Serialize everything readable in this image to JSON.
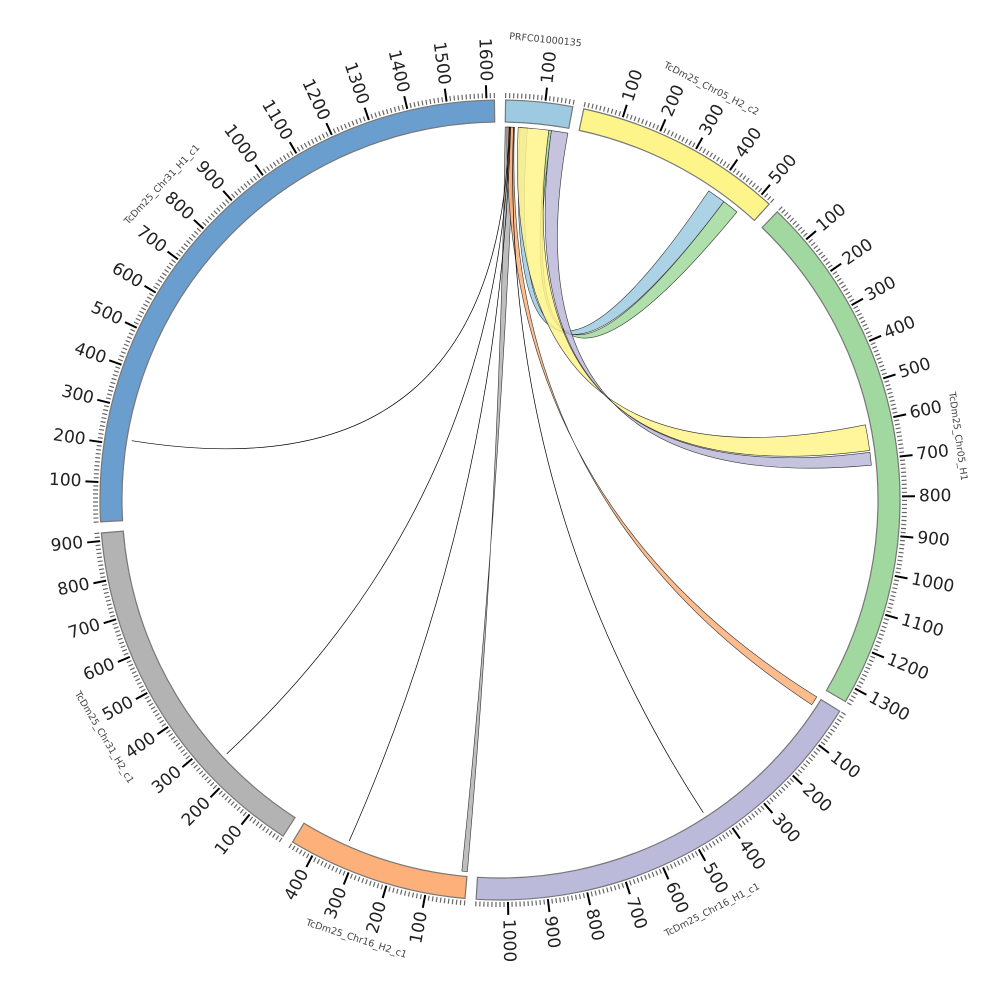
{
  "diagram_type": "circos",
  "tick_interval_major": 100,
  "tick_interval_minor": 10,
  "segments": [
    {
      "name": "PRFC01000135",
      "length": 170,
      "color": "#9ecae1"
    },
    {
      "name": "TcDm25_Chr05_H2_c2",
      "length": 530,
      "color": "#fef58a"
    },
    {
      "name": "TcDm25_Chr05_H1",
      "length": 1340,
      "color": "#a1d8a0"
    },
    {
      "name": "TcDm25_Chr16_H1_c1",
      "length": 1080,
      "color": "#bcbadb"
    },
    {
      "name": "TcDm25_Chr16_H2_c1",
      "length": 460,
      "color": "#fdb07a"
    },
    {
      "name": "TcDm25_Chr31_H2_c1",
      "length": 920,
      "color": "#b3b3b3"
    },
    {
      "name": "TcDm25_Chr31_H1_c1",
      "length": 1620,
      "color": "#6a9ecf"
    }
  ],
  "links": [
    {
      "from": [
        0,
        0,
        25
      ],
      "to": [
        4,
        0,
        15
      ],
      "color": "#b3b3b3",
      "kind": "ribbon"
    },
    {
      "from": [
        0,
        5,
        25
      ],
      "to": [
        3,
        0,
        25
      ],
      "color": "#fdb07a",
      "kind": "ribbon"
    },
    {
      "from": [
        0,
        40,
        60
      ],
      "to": [
        1,
        385,
        435
      ],
      "color": "#9ecae1",
      "kind": "ribbon"
    },
    {
      "from": [
        0,
        118,
        125
      ],
      "to": [
        1,
        435,
        480
      ],
      "color": "#a1d99b",
      "kind": "ribbon"
    },
    {
      "from": [
        0,
        35,
        118
      ],
      "to": [
        2,
        605,
        675
      ],
      "color": "#fff38a",
      "kind": "ribbon"
    },
    {
      "from": [
        0,
        125,
        170
      ],
      "to": [
        2,
        680,
        715
      ],
      "color": "#bcb8d9",
      "kind": "ribbon"
    },
    {
      "from": [
        0,
        10,
        11
      ],
      "to": [
        6,
        215,
        216
      ],
      "color": "#000000",
      "kind": "line"
    },
    {
      "from": [
        0,
        12,
        13
      ],
      "to": [
        5,
        250,
        251
      ],
      "color": "#000000",
      "kind": "line"
    },
    {
      "from": [
        0,
        14,
        15
      ],
      "to": [
        4,
        330,
        331
      ],
      "color": "#000000",
      "kind": "line"
    },
    {
      "from": [
        0,
        22,
        23
      ],
      "to": [
        3,
        440,
        441
      ],
      "color": "#000000",
      "kind": "line"
    }
  ]
}
